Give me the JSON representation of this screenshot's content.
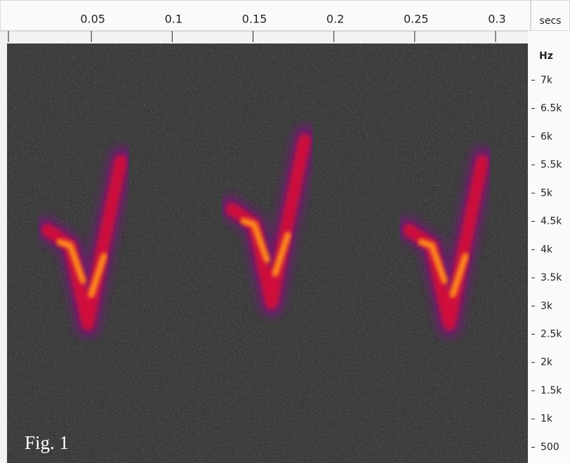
{
  "chart_data": {
    "type": "spectrogram",
    "xlabel": "secs",
    "ylabel": "Hz",
    "annotation": "Fig. 1",
    "xlim": [
      0,
      0.32
    ],
    "xticks": [
      0.05,
      0.1,
      0.15,
      0.2,
      0.25,
      0.3
    ],
    "ylim": [
      220,
      7650
    ],
    "yticks": [
      500,
      {
        "value": 1000,
        "label": "1k"
      },
      {
        "value": 1500,
        "label": "1.5k"
      },
      {
        "value": 2000,
        "label": "2k"
      },
      {
        "value": 2500,
        "label": "2.5k"
      },
      {
        "value": 3000,
        "label": "3k"
      },
      {
        "value": 3500,
        "label": "3.5k"
      },
      {
        "value": 4000,
        "label": "4k"
      },
      {
        "value": 4500,
        "label": "4.5k"
      },
      {
        "value": 5000,
        "label": "5k"
      },
      {
        "value": 5500,
        "label": "5.5k"
      },
      {
        "value": 6000,
        "label": "6k"
      },
      {
        "value": 6500,
        "label": "6.5k"
      },
      {
        "value": 7000,
        "label": "7k"
      }
    ]
  }
}
